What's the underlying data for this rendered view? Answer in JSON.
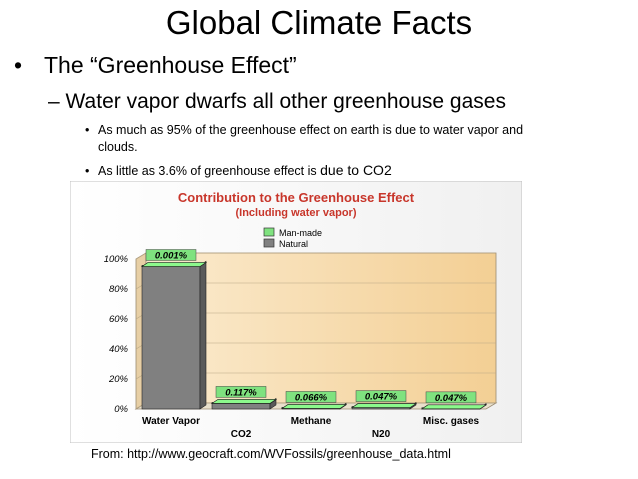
{
  "slide": {
    "title": "Global Climate Facts",
    "bullet1": "The “Greenhouse Effect”",
    "bullet2": "– Water vapor dwarfs all other greenhouse gases",
    "bullet3a_line1": "As  much as 95% of the greenhouse effect on earth is due to water vapor and",
    "bullet3a_line2": "clouds.",
    "bullet3b_a": "As little as 3.6% of greenhouse effect is ",
    "bullet3b_b": "due to CO2",
    "source": "From: http://www.geocraft.com/WVFossils/greenhouse_data.html",
    "bullet_glyph": "•"
  },
  "chart_data": {
    "type": "bar",
    "title": "Contribution to the Greenhouse Effect",
    "subtitle": "(Including water vapor)",
    "categories": [
      "Water Vapor",
      "CO2",
      "Methane",
      "N20",
      "Misc. gases"
    ],
    "series": [
      {
        "name": "Man-made",
        "values": [
          0.001,
          0.117,
          0.066,
          0.047,
          0.047
        ],
        "color": "#7fe27f"
      },
      {
        "name": "Natural",
        "values": [
          95.0,
          3.6,
          0.3,
          0.9,
          0.05
        ],
        "color": "#808080"
      }
    ],
    "data_labels": [
      "0.001%",
      "0.117%",
      "0.066%",
      "0.047%",
      "0.047%"
    ],
    "ytick_labels": [
      "0%",
      "20%",
      "40%",
      "60%",
      "80%",
      "100%"
    ],
    "ylim": [
      0,
      100
    ],
    "legend": "top-center",
    "grid": true,
    "colors": {
      "title": "#c8362b",
      "panel": "#f7dcae",
      "floor": "#e9e0cc"
    }
  }
}
